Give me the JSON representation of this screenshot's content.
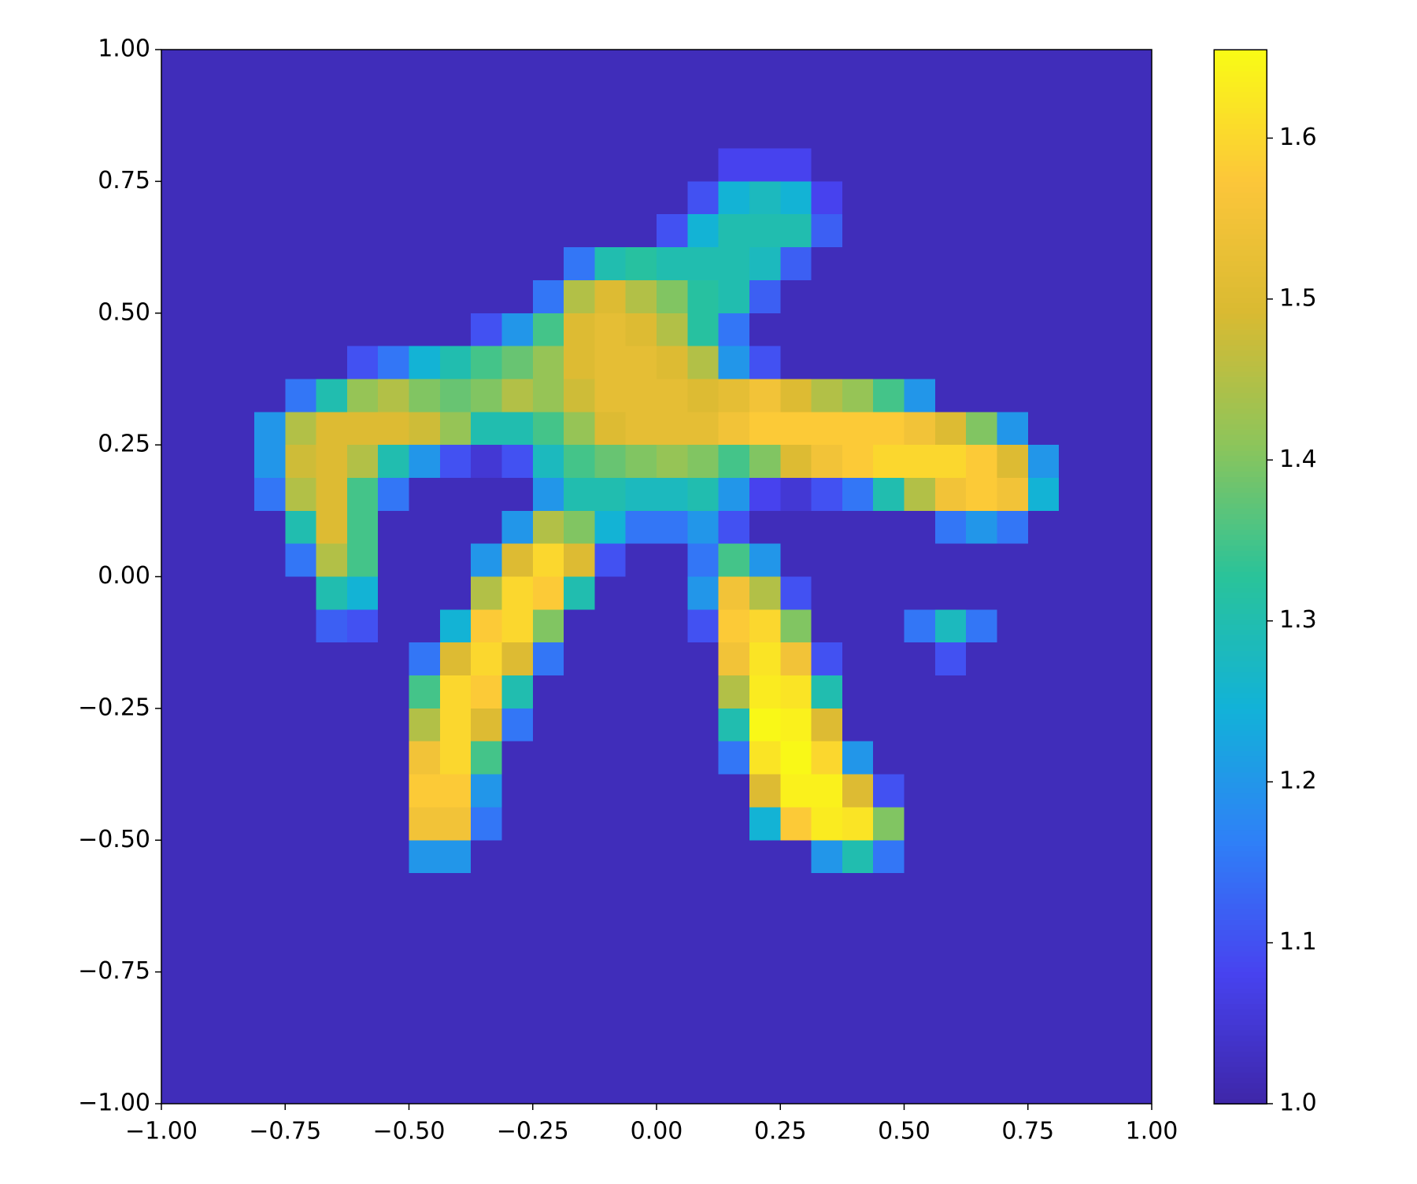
{
  "chart_data": {
    "type": "heatmap",
    "xlim": [
      -1,
      1
    ],
    "ylim": [
      -1,
      1
    ],
    "xticks": [
      {
        "value": -1,
        "label": "−1.00"
      },
      {
        "value": -0.75,
        "label": "−0.75"
      },
      {
        "value": -0.5,
        "label": "−0.50"
      },
      {
        "value": -0.25,
        "label": "−0.25"
      },
      {
        "value": 0,
        "label": "0.00"
      },
      {
        "value": 0.25,
        "label": "0.25"
      },
      {
        "value": 0.5,
        "label": "0.50"
      },
      {
        "value": 0.75,
        "label": "0.75"
      },
      {
        "value": 1,
        "label": "1.00"
      }
    ],
    "yticks": [
      {
        "value": -1,
        "label": "−1.00"
      },
      {
        "value": -0.75,
        "label": "−0.75"
      },
      {
        "value": -0.5,
        "label": "−0.50"
      },
      {
        "value": -0.25,
        "label": "−0.25"
      },
      {
        "value": 0,
        "label": "0.00"
      },
      {
        "value": 0.25,
        "label": "0.25"
      },
      {
        "value": 0.5,
        "label": "0.50"
      },
      {
        "value": 0.75,
        "label": "0.75"
      },
      {
        "value": 1,
        "label": "1.00"
      }
    ],
    "clim": [
      1.0,
      1.655
    ],
    "cticks": [
      {
        "value": 1,
        "label": "1.0"
      },
      1.1,
      1.2,
      1.3,
      1.4,
      1.5,
      1.6
    ],
    "colormap": [
      "#3e26a8",
      "#4743f0",
      "#2f80f7",
      "#12b2d8",
      "#29c39a",
      "#8cc55b",
      "#d9ba32",
      "#fcc63a",
      "#f9fb15"
    ],
    "z": [
      [
        1.02,
        1.02,
        1.02,
        1.02,
        1.02,
        1.02,
        1.02,
        1.02,
        1.02,
        1.02,
        1.02,
        1.02,
        1.02,
        1.02,
        1.02,
        1.02,
        1.02,
        1.02,
        1.02,
        1.02,
        1.02,
        1.02,
        1.02,
        1.02,
        1.02,
        1.02,
        1.02,
        1.02,
        1.02,
        1.02,
        1.02,
        1.02
      ],
      [
        1.02,
        1.02,
        1.02,
        1.02,
        1.02,
        1.02,
        1.02,
        1.02,
        1.02,
        1.02,
        1.02,
        1.02,
        1.02,
        1.02,
        1.02,
        1.02,
        1.02,
        1.02,
        1.02,
        1.02,
        1.02,
        1.02,
        1.02,
        1.02,
        1.02,
        1.02,
        1.02,
        1.02,
        1.02,
        1.02,
        1.02,
        1.02
      ],
      [
        1.02,
        1.02,
        1.02,
        1.02,
        1.02,
        1.02,
        1.02,
        1.02,
        1.02,
        1.02,
        1.02,
        1.02,
        1.02,
        1.02,
        1.02,
        1.02,
        1.02,
        1.02,
        1.02,
        1.02,
        1.02,
        1.02,
        1.02,
        1.02,
        1.02,
        1.02,
        1.02,
        1.02,
        1.02,
        1.02,
        1.02,
        1.02
      ],
      [
        1.02,
        1.02,
        1.02,
        1.02,
        1.02,
        1.02,
        1.02,
        1.02,
        1.02,
        1.02,
        1.02,
        1.02,
        1.02,
        1.02,
        1.02,
        1.02,
        1.02,
        1.02,
        1.08,
        1.08,
        1.08,
        1.02,
        1.02,
        1.02,
        1.02,
        1.02,
        1.02,
        1.02,
        1.02,
        1.02,
        1.02,
        1.02
      ],
      [
        1.02,
        1.02,
        1.02,
        1.02,
        1.02,
        1.02,
        1.02,
        1.02,
        1.02,
        1.02,
        1.02,
        1.02,
        1.02,
        1.02,
        1.02,
        1.02,
        1.02,
        1.1,
        1.25,
        1.28,
        1.25,
        1.08,
        1.02,
        1.02,
        1.02,
        1.02,
        1.02,
        1.02,
        1.02,
        1.02,
        1.02,
        1.02
      ],
      [
        1.02,
        1.02,
        1.02,
        1.02,
        1.02,
        1.02,
        1.02,
        1.02,
        1.02,
        1.02,
        1.02,
        1.02,
        1.02,
        1.02,
        1.02,
        1.02,
        1.1,
        1.25,
        1.3,
        1.3,
        1.3,
        1.12,
        1.02,
        1.02,
        1.02,
        1.02,
        1.02,
        1.02,
        1.02,
        1.02,
        1.02,
        1.02
      ],
      [
        1.02,
        1.02,
        1.02,
        1.02,
        1.02,
        1.02,
        1.02,
        1.02,
        1.02,
        1.02,
        1.02,
        1.02,
        1.02,
        1.15,
        1.3,
        1.32,
        1.3,
        1.3,
        1.3,
        1.28,
        1.12,
        1.02,
        1.02,
        1.02,
        1.02,
        1.02,
        1.02,
        1.02,
        1.02,
        1.02,
        1.02,
        1.02
      ],
      [
        1.02,
        1.02,
        1.02,
        1.02,
        1.02,
        1.02,
        1.02,
        1.02,
        1.02,
        1.02,
        1.02,
        1.02,
        1.15,
        1.45,
        1.5,
        1.45,
        1.4,
        1.32,
        1.3,
        1.12,
        1.02,
        1.02,
        1.02,
        1.02,
        1.02,
        1.02,
        1.02,
        1.02,
        1.02,
        1.02,
        1.02,
        1.02
      ],
      [
        1.02,
        1.02,
        1.02,
        1.02,
        1.02,
        1.02,
        1.02,
        1.02,
        1.02,
        1.02,
        1.1,
        1.2,
        1.35,
        1.5,
        1.52,
        1.5,
        1.45,
        1.32,
        1.15,
        1.02,
        1.02,
        1.02,
        1.02,
        1.02,
        1.02,
        1.02,
        1.02,
        1.02,
        1.02,
        1.02,
        1.02,
        1.02
      ],
      [
        1.02,
        1.02,
        1.02,
        1.02,
        1.02,
        1.02,
        1.1,
        1.15,
        1.25,
        1.3,
        1.35,
        1.38,
        1.42,
        1.5,
        1.52,
        1.52,
        1.5,
        1.45,
        1.2,
        1.1,
        1.02,
        1.02,
        1.02,
        1.02,
        1.02,
        1.02,
        1.02,
        1.02,
        1.02,
        1.02,
        1.02,
        1.02
      ],
      [
        1.02,
        1.02,
        1.02,
        1.02,
        1.15,
        1.3,
        1.42,
        1.45,
        1.4,
        1.38,
        1.4,
        1.45,
        1.42,
        1.48,
        1.52,
        1.52,
        1.52,
        1.5,
        1.52,
        1.55,
        1.5,
        1.45,
        1.42,
        1.35,
        1.2,
        1.02,
        1.02,
        1.02,
        1.02,
        1.02,
        1.02,
        1.02
      ],
      [
        1.02,
        1.02,
        1.02,
        1.2,
        1.45,
        1.5,
        1.5,
        1.5,
        1.48,
        1.42,
        1.3,
        1.3,
        1.35,
        1.42,
        1.5,
        1.52,
        1.52,
        1.52,
        1.55,
        1.58,
        1.58,
        1.58,
        1.58,
        1.58,
        1.55,
        1.5,
        1.4,
        1.2,
        1.02,
        1.02,
        1.02,
        1.02
      ],
      [
        1.02,
        1.02,
        1.02,
        1.2,
        1.48,
        1.5,
        1.45,
        1.3,
        1.2,
        1.1,
        1.05,
        1.1,
        1.28,
        1.35,
        1.38,
        1.4,
        1.42,
        1.4,
        1.35,
        1.4,
        1.5,
        1.55,
        1.58,
        1.6,
        1.6,
        1.6,
        1.58,
        1.5,
        1.2,
        1.02,
        1.02,
        1.02
      ],
      [
        1.02,
        1.02,
        1.02,
        1.15,
        1.45,
        1.5,
        1.35,
        1.15,
        1.02,
        1.02,
        1.02,
        1.02,
        1.2,
        1.3,
        1.3,
        1.28,
        1.28,
        1.3,
        1.2,
        1.08,
        1.05,
        1.1,
        1.15,
        1.3,
        1.45,
        1.55,
        1.58,
        1.55,
        1.25,
        1.02,
        1.02,
        1.02
      ],
      [
        1.02,
        1.02,
        1.02,
        1.02,
        1.3,
        1.5,
        1.35,
        1.02,
        1.02,
        1.02,
        1.02,
        1.2,
        1.45,
        1.4,
        1.25,
        1.15,
        1.15,
        1.2,
        1.1,
        1.02,
        1.02,
        1.02,
        1.02,
        1.02,
        1.02,
        1.15,
        1.2,
        1.15,
        1.02,
        1.02,
        1.02,
        1.02
      ],
      [
        1.02,
        1.02,
        1.02,
        1.02,
        1.15,
        1.45,
        1.35,
        1.02,
        1.02,
        1.02,
        1.2,
        1.5,
        1.6,
        1.5,
        1.1,
        1.02,
        1.02,
        1.15,
        1.35,
        1.2,
        1.02,
        1.02,
        1.02,
        1.02,
        1.02,
        1.02,
        1.02,
        1.02,
        1.02,
        1.02,
        1.02,
        1.02
      ],
      [
        1.02,
        1.02,
        1.02,
        1.02,
        1.02,
        1.3,
        1.25,
        1.02,
        1.02,
        1.02,
        1.45,
        1.6,
        1.58,
        1.3,
        1.02,
        1.02,
        1.02,
        1.2,
        1.55,
        1.45,
        1.1,
        1.02,
        1.02,
        1.02,
        1.02,
        1.02,
        1.02,
        1.02,
        1.02,
        1.02,
        1.02,
        1.02
      ],
      [
        1.02,
        1.02,
        1.02,
        1.02,
        1.02,
        1.12,
        1.1,
        1.02,
        1.02,
        1.25,
        1.58,
        1.6,
        1.4,
        1.02,
        1.02,
        1.02,
        1.02,
        1.1,
        1.58,
        1.6,
        1.4,
        1.02,
        1.02,
        1.02,
        1.15,
        1.28,
        1.15,
        1.02,
        1.02,
        1.02,
        1.02,
        1.02
      ],
      [
        1.02,
        1.02,
        1.02,
        1.02,
        1.02,
        1.02,
        1.02,
        1.02,
        1.15,
        1.5,
        1.6,
        1.5,
        1.15,
        1.02,
        1.02,
        1.02,
        1.02,
        1.02,
        1.55,
        1.62,
        1.55,
        1.1,
        1.02,
        1.02,
        1.02,
        1.1,
        1.02,
        1.02,
        1.02,
        1.02,
        1.02,
        1.02
      ],
      [
        1.02,
        1.02,
        1.02,
        1.02,
        1.02,
        1.02,
        1.02,
        1.02,
        1.35,
        1.6,
        1.58,
        1.3,
        1.02,
        1.02,
        1.02,
        1.02,
        1.02,
        1.02,
        1.45,
        1.63,
        1.62,
        1.3,
        1.02,
        1.02,
        1.02,
        1.02,
        1.02,
        1.02,
        1.02,
        1.02,
        1.02,
        1.02
      ],
      [
        1.02,
        1.02,
        1.02,
        1.02,
        1.02,
        1.02,
        1.02,
        1.02,
        1.45,
        1.6,
        1.5,
        1.15,
        1.02,
        1.02,
        1.02,
        1.02,
        1.02,
        1.02,
        1.3,
        1.65,
        1.64,
        1.5,
        1.02,
        1.02,
        1.02,
        1.02,
        1.02,
        1.02,
        1.02,
        1.02,
        1.02,
        1.02
      ],
      [
        1.02,
        1.02,
        1.02,
        1.02,
        1.02,
        1.02,
        1.02,
        1.02,
        1.55,
        1.6,
        1.35,
        1.02,
        1.02,
        1.02,
        1.02,
        1.02,
        1.02,
        1.02,
        1.15,
        1.62,
        1.65,
        1.6,
        1.2,
        1.02,
        1.02,
        1.02,
        1.02,
        1.02,
        1.02,
        1.02,
        1.02,
        1.02
      ],
      [
        1.02,
        1.02,
        1.02,
        1.02,
        1.02,
        1.02,
        1.02,
        1.02,
        1.58,
        1.58,
        1.2,
        1.02,
        1.02,
        1.02,
        1.02,
        1.02,
        1.02,
        1.02,
        1.02,
        1.5,
        1.64,
        1.64,
        1.5,
        1.1,
        1.02,
        1.02,
        1.02,
        1.02,
        1.02,
        1.02,
        1.02,
        1.02
      ],
      [
        1.02,
        1.02,
        1.02,
        1.02,
        1.02,
        1.02,
        1.02,
        1.02,
        1.55,
        1.55,
        1.15,
        1.02,
        1.02,
        1.02,
        1.02,
        1.02,
        1.02,
        1.02,
        1.02,
        1.25,
        1.58,
        1.63,
        1.62,
        1.4,
        1.02,
        1.02,
        1.02,
        1.02,
        1.02,
        1.02,
        1.02,
        1.02
      ],
      [
        1.02,
        1.02,
        1.02,
        1.02,
        1.02,
        1.02,
        1.02,
        1.02,
        1.2,
        1.2,
        1.02,
        1.02,
        1.02,
        1.02,
        1.02,
        1.02,
        1.02,
        1.02,
        1.02,
        1.02,
        1.02,
        1.2,
        1.3,
        1.15,
        1.02,
        1.02,
        1.02,
        1.02,
        1.02,
        1.02,
        1.02,
        1.02
      ],
      [
        1.02,
        1.02,
        1.02,
        1.02,
        1.02,
        1.02,
        1.02,
        1.02,
        1.02,
        1.02,
        1.02,
        1.02,
        1.02,
        1.02,
        1.02,
        1.02,
        1.02,
        1.02,
        1.02,
        1.02,
        1.02,
        1.02,
        1.02,
        1.02,
        1.02,
        1.02,
        1.02,
        1.02,
        1.02,
        1.02,
        1.02,
        1.02
      ],
      [
        1.02,
        1.02,
        1.02,
        1.02,
        1.02,
        1.02,
        1.02,
        1.02,
        1.02,
        1.02,
        1.02,
        1.02,
        1.02,
        1.02,
        1.02,
        1.02,
        1.02,
        1.02,
        1.02,
        1.02,
        1.02,
        1.02,
        1.02,
        1.02,
        1.02,
        1.02,
        1.02,
        1.02,
        1.02,
        1.02,
        1.02,
        1.02
      ],
      [
        1.02,
        1.02,
        1.02,
        1.02,
        1.02,
        1.02,
        1.02,
        1.02,
        1.02,
        1.02,
        1.02,
        1.02,
        1.02,
        1.02,
        1.02,
        1.02,
        1.02,
        1.02,
        1.02,
        1.02,
        1.02,
        1.02,
        1.02,
        1.02,
        1.02,
        1.02,
        1.02,
        1.02,
        1.02,
        1.02,
        1.02,
        1.02
      ],
      [
        1.02,
        1.02,
        1.02,
        1.02,
        1.02,
        1.02,
        1.02,
        1.02,
        1.02,
        1.02,
        1.02,
        1.02,
        1.02,
        1.02,
        1.02,
        1.02,
        1.02,
        1.02,
        1.02,
        1.02,
        1.02,
        1.02,
        1.02,
        1.02,
        1.02,
        1.02,
        1.02,
        1.02,
        1.02,
        1.02,
        1.02,
        1.02
      ],
      [
        1.02,
        1.02,
        1.02,
        1.02,
        1.02,
        1.02,
        1.02,
        1.02,
        1.02,
        1.02,
        1.02,
        1.02,
        1.02,
        1.02,
        1.02,
        1.02,
        1.02,
        1.02,
        1.02,
        1.02,
        1.02,
        1.02,
        1.02,
        1.02,
        1.02,
        1.02,
        1.02,
        1.02,
        1.02,
        1.02,
        1.02,
        1.02
      ],
      [
        1.02,
        1.02,
        1.02,
        1.02,
        1.02,
        1.02,
        1.02,
        1.02,
        1.02,
        1.02,
        1.02,
        1.02,
        1.02,
        1.02,
        1.02,
        1.02,
        1.02,
        1.02,
        1.02,
        1.02,
        1.02,
        1.02,
        1.02,
        1.02,
        1.02,
        1.02,
        1.02,
        1.02,
        1.02,
        1.02,
        1.02,
        1.02
      ],
      [
        1.02,
        1.02,
        1.02,
        1.02,
        1.02,
        1.02,
        1.02,
        1.02,
        1.02,
        1.02,
        1.02,
        1.02,
        1.02,
        1.02,
        1.02,
        1.02,
        1.02,
        1.02,
        1.02,
        1.02,
        1.02,
        1.02,
        1.02,
        1.02,
        1.02,
        1.02,
        1.02,
        1.02,
        1.02,
        1.02,
        1.02,
        1.02
      ]
    ]
  }
}
